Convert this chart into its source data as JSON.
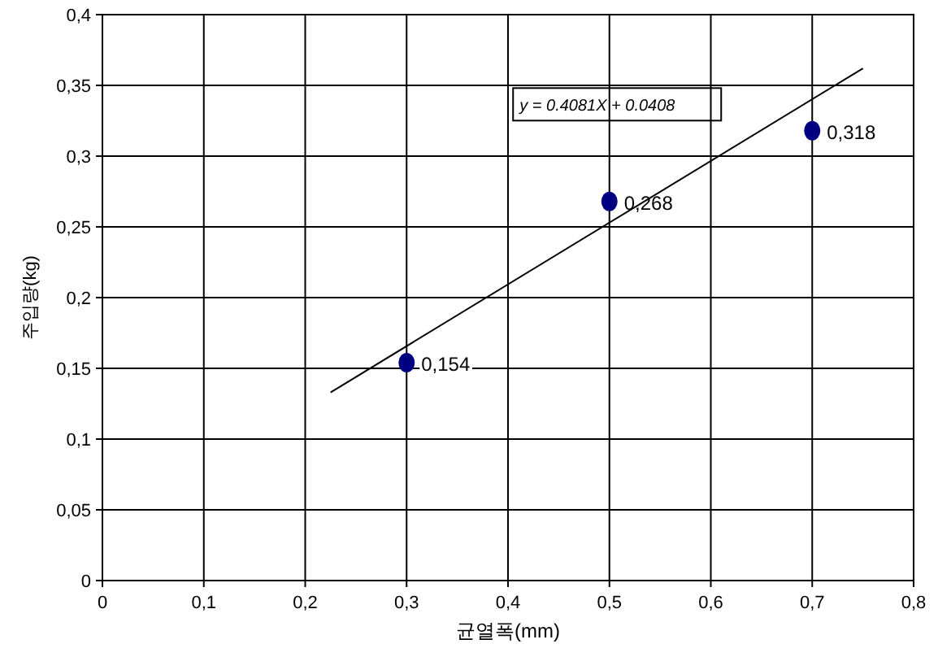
{
  "chart_data": {
    "type": "scatter",
    "xlabel": "균열폭(mm)",
    "ylabel": "주입량(kg)",
    "xlim": [
      0,
      0.8
    ],
    "ylim": [
      0,
      0.4
    ],
    "xticks": [
      0,
      {
        "value": 0.1,
        "label": "0,1"
      },
      {
        "value": 0.2,
        "label": "0,2"
      },
      {
        "value": 0.3,
        "label": "0,3"
      },
      {
        "value": 0.4,
        "label": "0,4"
      },
      {
        "value": 0.5,
        "label": "0,5"
      },
      {
        "value": 0.6,
        "label": "0,6"
      },
      {
        "value": 0.7,
        "label": "0,7"
      },
      {
        "value": 0.8,
        "label": "0,8"
      }
    ],
    "yticks": [
      0,
      {
        "value": 0.05,
        "label": "0,05"
      },
      {
        "value": 0.1,
        "label": "0,1"
      },
      {
        "value": 0.15,
        "label": "0,15"
      },
      {
        "value": 0.2,
        "label": "0,2"
      },
      {
        "value": 0.25,
        "label": "0,25"
      },
      {
        "value": 0.3,
        "label": "0,3"
      },
      {
        "value": 0.35,
        "label": "0,35"
      },
      {
        "value": 0.4,
        "label": "0,4"
      }
    ],
    "grid": true,
    "series": [
      {
        "marker": "circle",
        "color": "#000080",
        "x": [
          0.3,
          0.5,
          0.7
        ],
        "values": [
          0.154,
          0.268,
          0.318
        ],
        "value_labels": [
          "0,154",
          "0,268",
          "0,318"
        ]
      },
      {
        "type": "line",
        "marker": "none",
        "color": "#000000",
        "x": [
          0.225,
          0.75
        ],
        "values": [
          0.133,
          0.362
        ]
      }
    ],
    "annotations": [
      "y = 0.4081X + 0.0408"
    ]
  }
}
